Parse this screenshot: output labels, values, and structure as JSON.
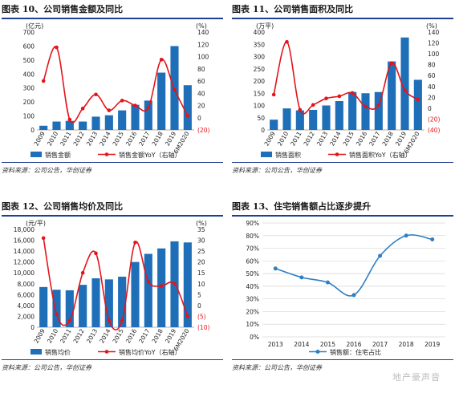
{
  "panels": [
    {
      "title": "图表 10、公司销售金额及同比",
      "source": "资料来源：公司公告，华创证券",
      "chart_data": {
        "type": "bar-line",
        "categories": [
          "2009",
          "2010",
          "2011",
          "2012",
          "2013",
          "2014",
          "2015",
          "2016",
          "2017",
          "2018",
          "2019",
          "6M2020"
        ],
        "left_unit": "(亿元)",
        "right_unit": "(%)",
        "left_ylim": [
          0,
          700
        ],
        "left_ticks": [
          0,
          100,
          200,
          300,
          400,
          500,
          600,
          700
        ],
        "right_ylim": [
          -20,
          140
        ],
        "right_ticks": [
          -20,
          0,
          20,
          40,
          60,
          80,
          100,
          120,
          140
        ],
        "right_tick_labels": [
          "(20)",
          "0",
          "20",
          "40",
          "60",
          "80",
          "100",
          "120",
          "140"
        ],
        "bars": {
          "name": "销售金额",
          "values": [
            30,
            60,
            65,
            60,
            95,
            105,
            140,
            180,
            210,
            410,
            600,
            320
          ]
        },
        "line": {
          "name": "销售金额YoY（右轴）",
          "values": [
            60,
            115,
            -3,
            15,
            38,
            12,
            28,
            20,
            16,
            95,
            46,
            3
          ]
        }
      }
    },
    {
      "title": "图表 11、公司销售面积及同比",
      "source": "资料来源：公司公告，华创证券",
      "chart_data": {
        "type": "bar-line",
        "categories": [
          "2009",
          "2010",
          "2011",
          "2012",
          "2013",
          "2014",
          "2015",
          "2016",
          "2017",
          "2018",
          "2019",
          "6M2020"
        ],
        "left_unit": "(万平)",
        "right_unit": "(%)",
        "left_ylim": [
          0,
          400
        ],
        "left_ticks": [
          0,
          50,
          100,
          150,
          200,
          250,
          300,
          350,
          400
        ],
        "right_ylim": [
          -40,
          140
        ],
        "right_ticks": [
          -40,
          -20,
          0,
          20,
          40,
          60,
          80,
          100,
          120,
          140
        ],
        "right_tick_labels": [
          "(40)",
          "(20)",
          "0",
          "20",
          "40",
          "60",
          "80",
          "100",
          "120",
          "140"
        ],
        "bars": {
          "name": "销售面积",
          "values": [
            42,
            88,
            80,
            82,
            100,
            118,
            155,
            150,
            155,
            280,
            378,
            205
          ]
        },
        "line": {
          "name": "销售面积YoY（右轴）",
          "values": [
            25,
            122,
            -3,
            6,
            18,
            22,
            28,
            3,
            6,
            83,
            33,
            16
          ]
        }
      }
    },
    {
      "title": "图表 12、公司销售均价及同比",
      "source": "资料来源：公司公告，华创证券",
      "chart_data": {
        "type": "bar-line",
        "categories": [
          "2009",
          "2010",
          "2011",
          "2012",
          "2013",
          "2014",
          "2015",
          "2016",
          "2017",
          "2018",
          "2019",
          "6M2020"
        ],
        "left_unit": "(元/平)",
        "right_unit": "(%)",
        "left_ylim": [
          0,
          18000
        ],
        "left_ticks": [
          0,
          2000,
          4000,
          6000,
          8000,
          10000,
          12000,
          14000,
          16000,
          18000
        ],
        "left_tick_labels": [
          "0",
          "2,000",
          "4,000",
          "6,000",
          "8,000",
          "10,000",
          "12,000",
          "14,000",
          "16,000",
          "18,000"
        ],
        "right_ylim": [
          -10,
          35
        ],
        "right_ticks": [
          -10,
          -5,
          0,
          5,
          10,
          15,
          20,
          25,
          30,
          35
        ],
        "right_tick_labels": [
          "(10)",
          "(5)",
          "0",
          "5",
          "10",
          "15",
          "20",
          "25",
          "30",
          "35"
        ],
        "bars": {
          "name": "销售均价",
          "values": [
            7400,
            6900,
            6800,
            7800,
            9000,
            8800,
            9300,
            12000,
            13500,
            14500,
            15800,
            15600
          ]
        },
        "line": {
          "name": "销售均价YoY（右轴）",
          "values": [
            31,
            -4,
            -7,
            15,
            24,
            -7,
            -7,
            29,
            11,
            9,
            10,
            -5
          ]
        }
      }
    },
    {
      "title": "图表 13、住宅销售额占比逐步提升",
      "source": "资料来源：公司公告，华创证券",
      "chart_data": {
        "type": "line",
        "categories": [
          "2013",
          "2014",
          "2015",
          "2016",
          "2017",
          "2018",
          "2019"
        ],
        "ylim": [
          0,
          90
        ],
        "ticks": [
          0,
          10,
          20,
          30,
          40,
          50,
          60,
          70,
          80,
          90
        ],
        "tick_labels": [
          "0%",
          "10%",
          "20%",
          "30%",
          "40%",
          "50%",
          "60%",
          "70%",
          "80%",
          "90%"
        ],
        "grid": true,
        "series": [
          {
            "name": "销售额：住宅占比",
            "values": [
              54,
              47,
              43,
              33,
              64,
              80,
              77
            ]
          }
        ]
      }
    }
  ],
  "colors": {
    "bar": "#1f6fb8",
    "line": "#e3141b",
    "line4": "#2e7fc4",
    "title_rule": "#1f3f8f"
  },
  "watermark": "地产豪声音"
}
